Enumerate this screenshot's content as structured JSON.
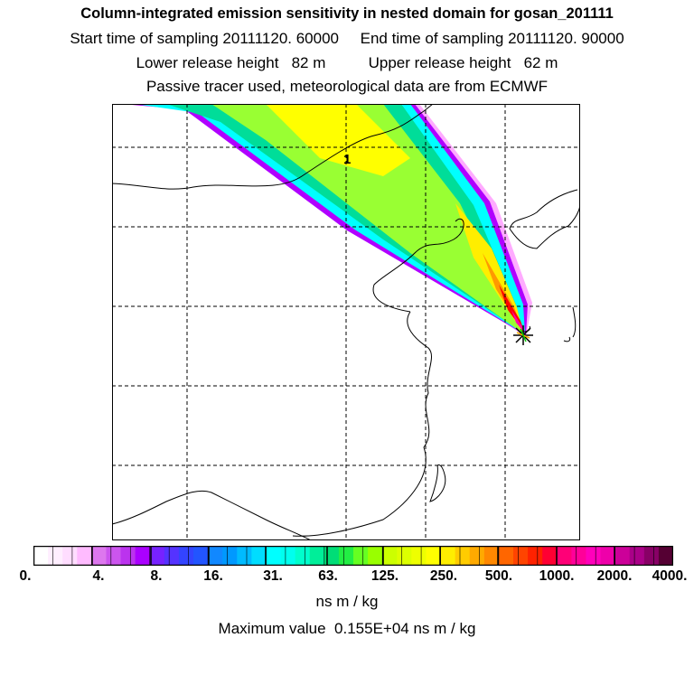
{
  "header": {
    "title": "Column-integrated emission sensitivity in nested domain for gosan_201111",
    "line2": "Start time of sampling 20111120. 60000     End time of sampling 20111120. 90000",
    "line3": "Lower release height   82 m          Upper release height   62 m",
    "line4": "Passive tracer used, meteorological data are from ECMWF"
  },
  "map": {
    "release_marker_label": "1",
    "receptor_symbol": "star",
    "grid": "dashed",
    "plume_colors": [
      "#ff66ff",
      "#9900ff",
      "#00ffff",
      "#00cc88",
      "#99ff33",
      "#ffff00",
      "#ff9900",
      "#ff0000"
    ]
  },
  "colorbar": {
    "tick_labels": [
      "0.",
      "4.",
      "8.",
      "16.",
      "31.",
      "63.",
      "125.",
      "250.",
      "500.",
      "1000.",
      "2000.",
      "4000."
    ],
    "colors": [
      "#ffffff",
      "#ffeeff",
      "#ffddff",
      "#ffbbff",
      "#dd77ee",
      "#cc55ee",
      "#bb33ee",
      "#aa00ff",
      "#7722ff",
      "#5533ff",
      "#3344ff",
      "#2255ff",
      "#1188ff",
      "#0099ff",
      "#00bbff",
      "#00ddff",
      "#00ffff",
      "#00ffee",
      "#00ffcc",
      "#00ee99",
      "#00dd77",
      "#22ee44",
      "#66ff22",
      "#99ff00",
      "#ccff00",
      "#ddff00",
      "#eeff00",
      "#ffff00",
      "#ffee00",
      "#ffcc00",
      "#ffaa00",
      "#ff8800",
      "#ff6600",
      "#ff4400",
      "#ff2200",
      "#ff0033",
      "#ff0077",
      "#ff0099",
      "#ff00bb",
      "#ee00aa",
      "#cc0099",
      "#aa0088",
      "#880066",
      "#550033"
    ],
    "units": "ns m / kg"
  },
  "footer": {
    "max_value": "Maximum value  0.155E+04 ns m / kg"
  }
}
